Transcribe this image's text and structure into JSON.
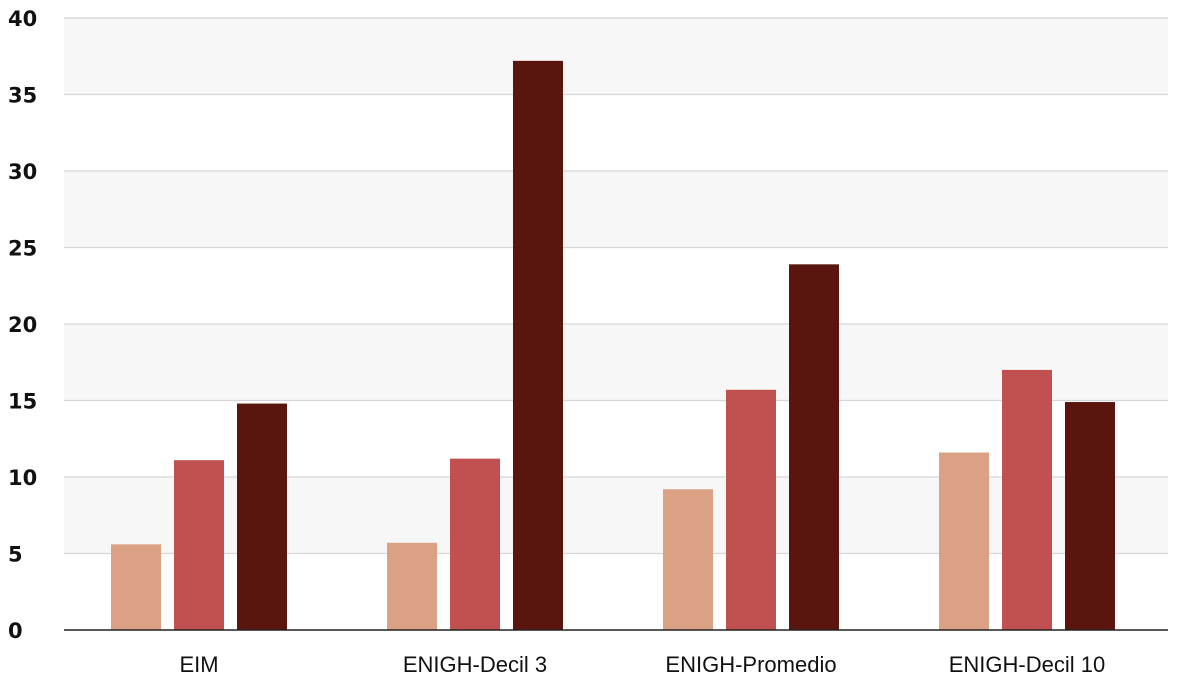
{
  "chart_data": {
    "type": "bar",
    "title": "",
    "xlabel": "",
    "ylabel": "",
    "categories": [
      "EIM",
      "ENIGH-Decil 3",
      "ENIGH-Promedio",
      "ENIGH-Decil 10"
    ],
    "series": [
      {
        "values": [
          5.6,
          5.7,
          9.2,
          11.6
        ],
        "color": "#dba185"
      },
      {
        "values": [
          11.1,
          11.2,
          15.7,
          17.0
        ],
        "color": "#c05150"
      },
      {
        "values": [
          14.8,
          37.2,
          23.9,
          14.9
        ],
        "color": "#5a160e"
      }
    ],
    "ylim": [
      0,
      40
    ],
    "yticks": [
      0,
      5,
      10,
      15,
      20,
      25,
      30,
      35,
      40
    ],
    "grid": true,
    "banding": true,
    "legend": "none"
  }
}
